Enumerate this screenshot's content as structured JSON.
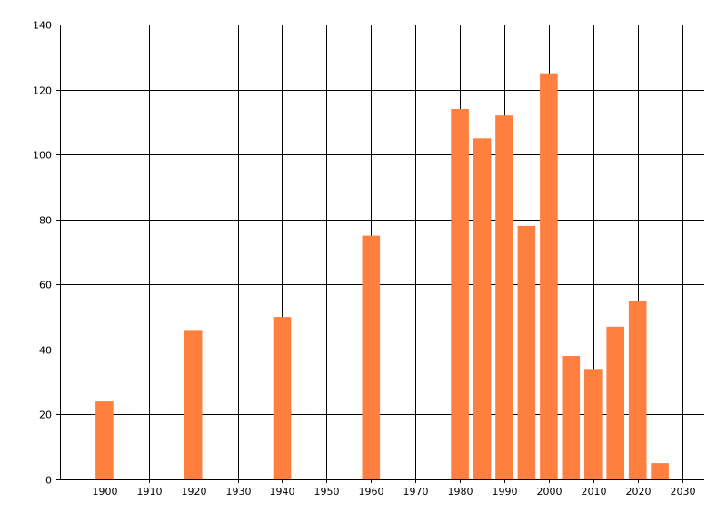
{
  "chart_data": {
    "type": "bar",
    "title": "",
    "xlabel": "",
    "ylabel": "",
    "x": [
      1900,
      1920,
      1940,
      1960,
      1980,
      1985,
      1990,
      1995,
      2000,
      2005,
      2010,
      2015,
      2020,
      2025
    ],
    "values": [
      24,
      46,
      50,
      75,
      114,
      105,
      112,
      78,
      125,
      38,
      34,
      47,
      55,
      5
    ],
    "xlim": [
      1890,
      2035
    ],
    "ylim": [
      0,
      140
    ],
    "x_ticks": [
      1900,
      1910,
      1920,
      1930,
      1940,
      1950,
      1960,
      1970,
      1980,
      1990,
      2000,
      2010,
      2020,
      2030
    ],
    "y_ticks": [
      0,
      20,
      40,
      60,
      80,
      100,
      120,
      140
    ],
    "grid": true,
    "bar_width_years": 4,
    "bar_color": "#FF7F3F",
    "grid_color": "#000000"
  }
}
